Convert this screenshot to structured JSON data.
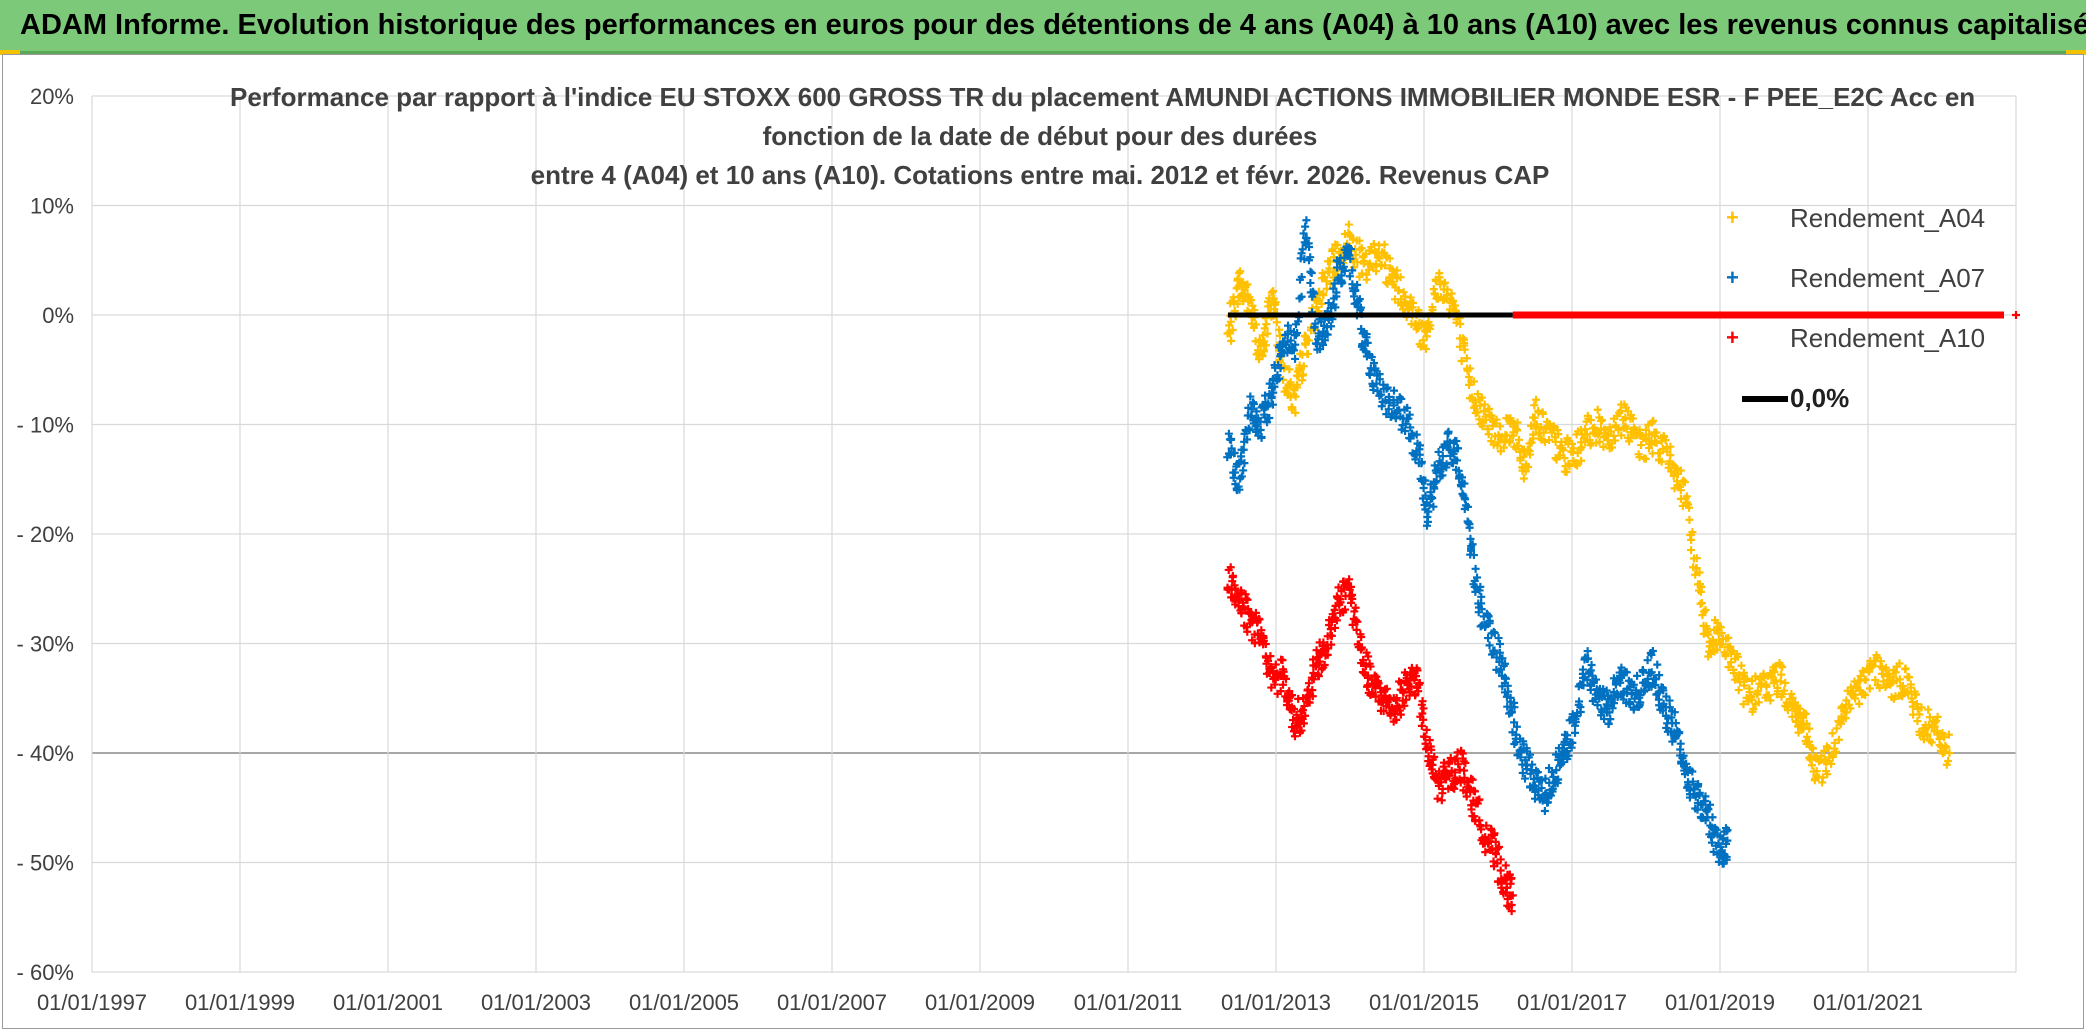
{
  "header": {
    "banner_title": "ADAM Informe. Evolution historique des performances en euros pour des détentions de 4 ans (A04) à 10 ans (A10) avec les revenus connus capitalisés"
  },
  "colors": {
    "banner_bg": "#7dc97a",
    "a04": "#ffc000",
    "a07": "#0070c0",
    "a10": "#ff0000",
    "zero_line": "#000000",
    "grid": "#d9d9d9"
  },
  "chart_data": {
    "type": "scatter",
    "title_lines": [
      "Performance par rapport à l'indice EU STOXX 600 GROSS TR  du placement AMUNDI ACTIONS IMMOBILIER MONDE ESR - F PEE_E2C Acc en",
      "fonction de la date de début pour des durées",
      "entre 4 (A04) et 10 ans (A10). Cotations entre mai. 2012 et févr. 2026. Revenus CAP"
    ],
    "xlabel": "",
    "ylabel": "",
    "x_axis": {
      "min": 1997.0,
      "max": 2023.0,
      "tick_values": [
        1997,
        1999,
        2001,
        2003,
        2005,
        2007,
        2009,
        2011,
        2013,
        2015,
        2017,
        2019,
        2021
      ],
      "tick_labels": [
        "01/01/1997",
        "01/01/1999",
        "01/01/2001",
        "01/01/2003",
        "01/01/2005",
        "01/01/2007",
        "01/01/2009",
        "01/01/2011",
        "01/01/2013",
        "01/01/2015",
        "01/01/2017",
        "01/01/2019",
        "01/01/2021"
      ]
    },
    "y_axis": {
      "min": -60,
      "max": 20,
      "tick_values": [
        20,
        10,
        0,
        -10,
        -20,
        -30,
        -40,
        -50,
        -60
      ],
      "tick_labels": [
        "20%",
        "10%",
        "0%",
        "- 10%",
        "- 20%",
        "- 30%",
        "- 40%",
        "- 50%",
        "- 60%"
      ],
      "highlight_value": -40
    },
    "series": [
      {
        "name": "Rendement_A04",
        "marker": "plus",
        "color": "#ffc000",
        "x": [
          2012.35,
          2012.5,
          2012.65,
          2012.8,
          2012.95,
          2013.1,
          2013.25,
          2013.4,
          2013.6,
          2013.8,
          2014.0,
          2014.2,
          2014.4,
          2014.6,
          2014.8,
          2015.0,
          2015.2,
          2015.4,
          2015.6,
          2015.8,
          2016.0,
          2016.2,
          2016.35,
          2016.5,
          2016.7,
          2016.9,
          2017.1,
          2017.3,
          2017.5,
          2017.7,
          2017.9,
          2018.1,
          2018.3,
          2018.5,
          2018.7,
          2018.85,
          2019.0,
          2019.2,
          2019.4,
          2019.6,
          2019.8,
          2020.0,
          2020.15,
          2020.3,
          2020.5,
          2020.7,
          2020.9,
          2021.1,
          2021.3,
          2021.5,
          2021.7,
          2021.9,
          2022.1
        ],
        "values": [
          -2,
          3,
          1,
          -4,
          2,
          -5,
          -8,
          -3,
          2,
          5,
          7,
          4,
          6,
          3,
          1,
          -2,
          3,
          1,
          -6,
          -9,
          -11,
          -10,
          -14,
          -9,
          -11,
          -13,
          -12,
          -10,
          -11,
          -9,
          -12,
          -11,
          -13,
          -16,
          -24,
          -30,
          -29,
          -32,
          -35,
          -34,
          -33,
          -36,
          -38,
          -42,
          -40,
          -36,
          -34,
          -32,
          -34,
          -33,
          -37,
          -38,
          -40
        ]
      },
      {
        "name": "Rendement_A07",
        "marker": "plus",
        "color": "#0070c0",
        "x": [
          2012.35,
          2012.5,
          2012.65,
          2012.8,
          2012.95,
          2013.1,
          2013.25,
          2013.4,
          2013.55,
          2013.7,
          2013.85,
          2014.0,
          2014.15,
          2014.3,
          2014.5,
          2014.7,
          2014.9,
          2015.05,
          2015.2,
          2015.35,
          2015.5,
          2015.65,
          2015.8,
          2016.0,
          2016.15,
          2016.3,
          2016.45,
          2016.6,
          2016.75,
          2016.9,
          2017.05,
          2017.2,
          2017.35,
          2017.5,
          2017.65,
          2017.8,
          2017.95,
          2018.1,
          2018.25,
          2018.4,
          2018.55,
          2018.7,
          2018.85,
          2019.0,
          2019.1
        ],
        "values": [
          -12,
          -15,
          -9,
          -10,
          -7,
          -2,
          -3,
          8,
          -2,
          -1,
          4,
          5,
          -1,
          -5,
          -8,
          -9,
          -12,
          -18,
          -14,
          -12,
          -14,
          -22,
          -28,
          -31,
          -35,
          -40,
          -42,
          -44,
          -42,
          -40,
          -37,
          -32,
          -35,
          -36,
          -33,
          -35,
          -34,
          -32,
          -36,
          -38,
          -42,
          -44,
          -46,
          -49,
          -48
        ]
      },
      {
        "name": "Rendement_A10",
        "marker": "plus",
        "color": "#ff0000",
        "x": [
          2012.35,
          2012.5,
          2012.65,
          2012.8,
          2012.95,
          2013.1,
          2013.25,
          2013.4,
          2013.55,
          2013.7,
          2013.85,
          2014.0,
          2014.15,
          2014.3,
          2014.45,
          2014.6,
          2014.75,
          2014.9,
          2015.05,
          2015.2,
          2015.35,
          2015.5,
          2015.65,
          2015.8,
          2015.95,
          2016.1,
          2016.2
        ],
        "values": [
          -24,
          -26,
          -28,
          -29,
          -33,
          -33,
          -37,
          -36,
          -32,
          -30,
          -26,
          -25,
          -31,
          -34,
          -35,
          -36,
          -34,
          -33,
          -40,
          -43,
          -42,
          -41,
          -44,
          -47,
          -49,
          -52,
          -53
        ]
      },
      {
        "name": "Rendement_A10",
        "role": "baseline_part",
        "marker": "plus",
        "color": "#ff0000",
        "x": [
          2016.2,
          2023.0
        ],
        "values": [
          0,
          0
        ]
      },
      {
        "name": "0,0%",
        "marker": "line",
        "color": "#000000",
        "x": [
          2012.35,
          2016.2
        ],
        "values": [
          0,
          0
        ]
      }
    ],
    "legend": {
      "position": "top-right",
      "entries": [
        "Rendement_A04",
        "Rendement_A07",
        "Rendement_A10",
        "0,0%"
      ]
    },
    "grid": true
  }
}
